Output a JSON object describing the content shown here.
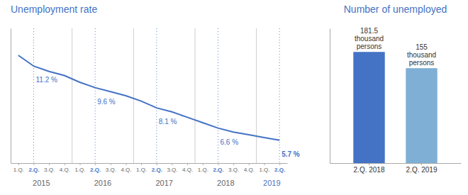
{
  "chart_data": [
    {
      "type": "line",
      "title": "Unemployment rate",
      "categories": [
        "1.Q.",
        "2.Q.",
        "3.Q.",
        "4.Q.",
        "1.Q.",
        "2.Q.",
        "3.Q.",
        "4.Q.",
        "1.Q.",
        "2.Q.",
        "3.Q.",
        "4.Q.",
        "1.Q.",
        "2.Q.",
        "3.Q.",
        "4.Q.",
        "1.Q.",
        "2.Q."
      ],
      "years": [
        "2015",
        "2016",
        "2017",
        "2018",
        "2019"
      ],
      "values": [
        12.0,
        11.2,
        10.8,
        10.5,
        10.0,
        9.6,
        9.3,
        9.0,
        8.6,
        8.1,
        7.8,
        7.4,
        7.0,
        6.6,
        6.3,
        6.1,
        5.9,
        5.7
      ],
      "value_labels": [
        null,
        "11.2 %",
        null,
        null,
        null,
        "9.6 %",
        null,
        null,
        null,
        "8.1 %",
        null,
        null,
        null,
        "6.6 %",
        null,
        null,
        null,
        "5.7 %"
      ],
      "color": "#4472c4",
      "ylim": [
        4,
        14
      ],
      "tick_labels": "x"
    },
    {
      "type": "bar",
      "title": "Number of unemployed",
      "categories": [
        "2.Q. 2018",
        "2.Q. 2019"
      ],
      "values": [
        181.5,
        155
      ],
      "value_labels": [
        "181.5\nthousand\npersons",
        "155\nthousand\npersons"
      ],
      "colors": [
        "#4472c4",
        "#7fafd4"
      ],
      "ylim": [
        0,
        220
      ],
      "tick_labels": "x"
    }
  ]
}
